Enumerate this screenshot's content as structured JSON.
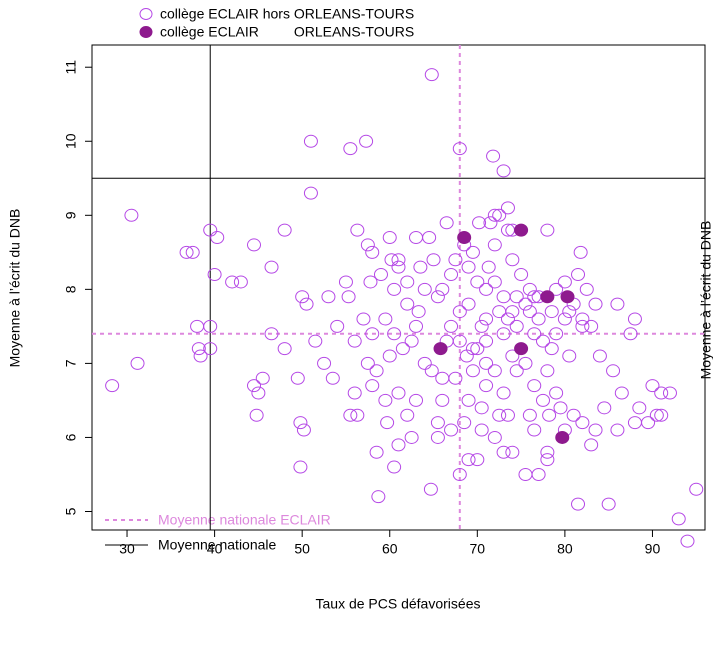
{
  "chart_data": {
    "type": "scatter",
    "xlabel": "Taux de PCS défavorisées",
    "ylabel": "Moyenne à l’écrit du DNB",
    "right_label": "Moyenne à l’écrit du DNB",
    "xlim": [
      26,
      96
    ],
    "ylim": [
      4.75,
      11.3
    ],
    "xticks": [
      30,
      40,
      50,
      60,
      70,
      80,
      90
    ],
    "yticks": [
      5,
      6,
      7,
      8,
      9,
      10,
      11
    ],
    "series": [
      {
        "name": "collège ECLAIR hors ORLEANS-TOURS",
        "color": "#b548e6",
        "filled": false,
        "x": [
          64.8,
          51,
          55.5,
          57.3,
          68,
          71.8,
          73,
          51,
          30.5,
          39.5,
          40.3,
          36.8,
          37.5,
          44.5,
          46.5,
          40,
          48,
          42,
          43,
          38,
          39.5,
          31.2,
          28.3,
          38.2,
          39.5,
          38.4,
          46.5,
          44.5,
          45,
          45.5,
          44.8,
          48,
          49.5,
          49.8,
          50.2,
          49.8,
          50,
          50.5,
          53,
          54,
          52.5,
          51.5,
          56,
          55.3,
          55,
          56.3,
          57.5,
          58,
          57.8,
          59,
          60,
          60.2,
          61,
          60.5,
          62,
          63,
          64.5,
          65,
          66,
          63.3,
          62.5,
          59.5,
          58,
          57.5,
          58.5,
          58,
          59.5,
          55.5,
          56.3,
          58.5,
          60.5,
          58.7,
          62,
          62.5,
          61,
          63,
          64,
          64.8,
          66,
          65.5,
          65.5,
          64.7,
          67,
          68,
          69,
          70,
          68.5,
          69,
          67.5,
          68.8,
          70,
          71,
          72,
          71,
          70.5,
          72.5,
          73.5,
          72,
          73,
          74,
          75.5,
          77,
          76,
          76.5,
          77.5,
          78.2,
          79,
          78,
          78,
          78,
          80,
          81,
          82,
          81.5,
          83.5,
          85,
          86,
          86.5,
          88,
          88.5,
          89.5,
          90,
          90.5,
          91,
          92,
          93,
          94,
          95,
          91,
          87.5,
          86,
          83,
          82,
          81,
          82.5,
          81.5,
          80,
          79,
          77,
          76,
          74.5,
          75,
          74,
          73.5,
          74,
          73.5,
          72,
          72.5,
          71.5,
          70.2,
          69.5,
          69,
          70,
          71,
          72,
          73,
          73.5,
          72.5,
          71,
          70.5,
          69,
          68,
          67,
          66.5,
          68,
          69.5,
          71,
          73,
          74,
          75.5,
          76.5,
          77.5,
          78.5,
          79,
          80.5,
          80,
          78.5,
          77,
          76,
          74.5,
          67,
          67.5,
          68.5,
          66.5,
          65.5,
          64,
          63,
          61.5,
          60,
          59.7,
          61,
          56,
          57,
          53.5,
          83,
          84,
          85.5,
          88,
          82,
          83.5,
          76.5,
          74.5,
          73,
          70.5,
          69.5,
          66,
          62,
          60.5,
          63.5,
          61,
          78,
          72,
          71.3,
          74,
          75.5,
          76.5,
          80.5,
          81.8,
          79.5,
          84.5
        ],
        "values": [
          10.9,
          10,
          9.9,
          10,
          9.9,
          9.8,
          9.6,
          9.3,
          9,
          8.8,
          8.7,
          8.5,
          8.5,
          8.6,
          8.3,
          8.2,
          8.8,
          8.1,
          8.1,
          7.5,
          7.5,
          7,
          6.7,
          7.2,
          7.2,
          7.1,
          7.4,
          6.7,
          6.6,
          6.8,
          6.3,
          7.2,
          6.8,
          6.2,
          6.1,
          5.6,
          7.9,
          7.8,
          7.9,
          7.5,
          7,
          7.3,
          7.3,
          7.9,
          8.1,
          8.8,
          8.6,
          8.5,
          8.1,
          8.2,
          8.7,
          8.4,
          8.3,
          8,
          8.1,
          8.7,
          8.7,
          8.4,
          8,
          7.7,
          7.3,
          7.6,
          7.4,
          7,
          6.9,
          6.7,
          6.5,
          6.3,
          6.3,
          5.8,
          5.6,
          5.2,
          6.3,
          6,
          6.6,
          6.5,
          7,
          6.9,
          6.5,
          6.2,
          6,
          5.3,
          6.1,
          5.5,
          5.7,
          5.7,
          6.2,
          6.5,
          6.8,
          7.1,
          7.2,
          7,
          6.9,
          6.7,
          6.4,
          6.3,
          6.3,
          6,
          5.8,
          5.8,
          5.5,
          5.5,
          6.3,
          6.7,
          6.5,
          6.3,
          6.6,
          6.9,
          5.7,
          5.8,
          6.1,
          6.3,
          6.2,
          5.1,
          6.1,
          5.1,
          6.1,
          6.6,
          6.2,
          6.4,
          6.2,
          6.7,
          6.3,
          6.3,
          6.6,
          4.9,
          4.6,
          5.3,
          6.6,
          7.4,
          7.8,
          7.5,
          7.6,
          7.8,
          8,
          8.2,
          8.1,
          8,
          7.9,
          8,
          7.9,
          8.2,
          8.4,
          8.8,
          8.8,
          9.1,
          9,
          9,
          8.9,
          8.9,
          8.5,
          8.3,
          8.1,
          8,
          8.1,
          7.9,
          7.6,
          7.7,
          7.6,
          7.5,
          7.8,
          7.7,
          7.5,
          7.3,
          7.3,
          7.2,
          7.3,
          7.4,
          7.1,
          7,
          7.4,
          7.3,
          7.2,
          7.4,
          7.1,
          7.6,
          7.7,
          7.6,
          7.7,
          7.5,
          8.2,
          8.4,
          8.6,
          8.9,
          7.9,
          8,
          7.5,
          7.2,
          7.1,
          6.2,
          5.9,
          6.6,
          7.6,
          6.8,
          5.9,
          7.1,
          6.9,
          7.6,
          7.5,
          7.8,
          6.1,
          6.9,
          6.6,
          6.1,
          6.9,
          6.8,
          7.8,
          7.4,
          8.3,
          8.4,
          8.8,
          8.6,
          8.3,
          7.7,
          7.8,
          7.9,
          7.7,
          8.5,
          6.4,
          6.4
        ]
      },
      {
        "name": "collège ECLAIR         ORLEANS-TOURS",
        "color": "#8e1a8e",
        "filled": true,
        "x": [
          68.5,
          75,
          78,
          80.3,
          65.8,
          75,
          79.7
        ],
        "values": [
          8.7,
          8.8,
          7.9,
          7.9,
          7.2,
          7.2,
          6.0
        ]
      }
    ],
    "reference_lines": [
      {
        "name": "Moyenne nationale ECLAIR",
        "x": 68,
        "y": 7.4,
        "color": "#dd88dd",
        "dashed": true
      },
      {
        "name": "Moyenne nationale",
        "x": 39.5,
        "y": 9.5,
        "color": "#000000",
        "dashed": false
      }
    ]
  }
}
